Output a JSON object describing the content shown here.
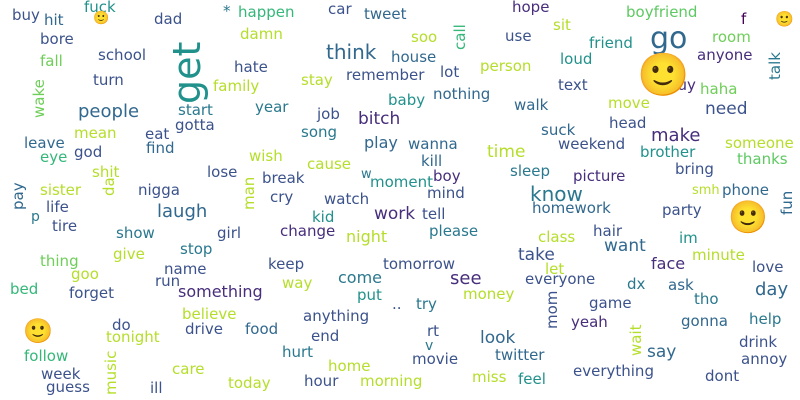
{
  "words": [
    {
      "text": "buy",
      "color": "#3b528b"
    },
    {
      "text": "fuck",
      "color": "#21918c"
    },
    {
      "text": "dad",
      "color": "#3b528b"
    },
    {
      "text": "*",
      "color": "#2a788e"
    },
    {
      "text": "happen",
      "color": "#35b779"
    },
    {
      "text": "car",
      "color": "#3b528b"
    },
    {
      "text": "tweet",
      "color": "#31688e"
    },
    {
      "text": "hope",
      "color": "#472d7b"
    },
    {
      "text": "boyfriend",
      "color": "#5ec962"
    },
    {
      "text": "f",
      "color": "#440154"
    },
    {
      "text": "hit",
      "color": "#31688e"
    },
    {
      "text": "🙂",
      "color": "#21918c"
    },
    {
      "text": "sit",
      "color": "#b5de2b"
    },
    {
      "text": "🙂",
      "color": "#2a788e"
    },
    {
      "text": "bore",
      "color": "#3b528b"
    },
    {
      "text": "damn",
      "color": "#b5de2b"
    },
    {
      "text": "soo",
      "color": "#b5de2b"
    },
    {
      "text": "call",
      "color": "#35b779"
    },
    {
      "text": "use",
      "color": "#3b528b"
    },
    {
      "text": "friend",
      "color": "#21918c"
    },
    {
      "text": "go",
      "color": "#31688e"
    },
    {
      "text": "room",
      "color": "#6ece58"
    },
    {
      "text": "school",
      "color": "#3b528b"
    },
    {
      "text": "think",
      "color": "#31688e"
    },
    {
      "text": "get",
      "color": "#21918c"
    },
    {
      "text": "house",
      "color": "#31688e"
    },
    {
      "text": "anyone",
      "color": "#472d7b"
    },
    {
      "text": "fall",
      "color": "#6ece58"
    },
    {
      "text": "hate",
      "color": "#3b528b"
    },
    {
      "text": "lot",
      "color": "#3b528b"
    },
    {
      "text": "person",
      "color": "#b5de2b"
    },
    {
      "text": "loud",
      "color": "#21918c"
    },
    {
      "text": "turn",
      "color": "#3b528b"
    },
    {
      "text": "stay",
      "color": "#b5de2b"
    },
    {
      "text": "remember",
      "color": "#3b528b"
    },
    {
      "text": "text",
      "color": "#3b528b"
    },
    {
      "text": "guy",
      "color": "#472d7b"
    },
    {
      "text": "haha",
      "color": "#6ece58"
    },
    {
      "text": "family",
      "color": "#b5de2b"
    },
    {
      "text": "baby",
      "color": "#21918c"
    },
    {
      "text": "nothing",
      "color": "#31688e"
    },
    {
      "text": "walk",
      "color": "#31688e"
    },
    {
      "text": "move",
      "color": "#b5de2b"
    },
    {
      "text": "need",
      "color": "#3b528b"
    },
    {
      "text": "people",
      "color": "#31688e"
    },
    {
      "text": "start",
      "color": "#2a788e"
    },
    {
      "text": "year",
      "color": "#2a788e"
    },
    {
      "text": "job",
      "color": "#3b528b"
    },
    {
      "text": "bitch",
      "color": "#472d7b"
    },
    {
      "text": "gotta",
      "color": "#3b528b"
    },
    {
      "text": "suck",
      "color": "#31688e"
    },
    {
      "text": "head",
      "color": "#3b528b"
    },
    {
      "text": "mean",
      "color": "#b5de2b"
    },
    {
      "text": "eat",
      "color": "#3b528b"
    },
    {
      "text": "song",
      "color": "#2a788e"
    },
    {
      "text": "make",
      "color": "#472d7b"
    },
    {
      "text": "someone",
      "color": "#b5de2b"
    },
    {
      "text": "leave",
      "color": "#31688e"
    },
    {
      "text": "play",
      "color": "#31688e"
    },
    {
      "text": "wanna",
      "color": "#31688e"
    },
    {
      "text": "weekend",
      "color": "#3b528b"
    },
    {
      "text": "brother",
      "color": "#21918c"
    },
    {
      "text": "thanks",
      "color": "#5ec962"
    },
    {
      "text": "god",
      "color": "#3b528b"
    },
    {
      "text": "find",
      "color": "#31688e"
    },
    {
      "text": "eye",
      "color": "#35b779"
    },
    {
      "text": "wish",
      "color": "#b5de2b"
    },
    {
      "text": "time",
      "color": "#b5de2b"
    },
    {
      "text": "kill",
      "color": "#31688e"
    },
    {
      "text": "cause",
      "color": "#b5de2b"
    },
    {
      "text": "shit",
      "color": "#b5de2b"
    },
    {
      "text": "lose",
      "color": "#3b528b"
    },
    {
      "text": "break",
      "color": "#3b528b"
    },
    {
      "text": "moment",
      "color": "#21918c"
    },
    {
      "text": "sleep",
      "color": "#2a788e"
    },
    {
      "text": "bring",
      "color": "#3b528b"
    },
    {
      "text": "know",
      "color": "#2a788e"
    },
    {
      "text": "sister",
      "color": "#b5de2b"
    },
    {
      "text": "nigga",
      "color": "#3b528b"
    },
    {
      "text": "cry",
      "color": "#3b528b"
    },
    {
      "text": "mind",
      "color": "#3b528b"
    },
    {
      "text": "boy",
      "color": "#472d7b"
    },
    {
      "text": "picture",
      "color": "#472d7b"
    },
    {
      "text": "phone",
      "color": "#31688e"
    },
    {
      "text": "smh",
      "color": "#b5de2b"
    },
    {
      "text": "laugh",
      "color": "#31688e"
    },
    {
      "text": "watch",
      "color": "#3b528b"
    },
    {
      "text": "life",
      "color": "#3b528b"
    },
    {
      "text": "work",
      "color": "#472d7b"
    },
    {
      "text": "tell",
      "color": "#3b528b"
    },
    {
      "text": "homework",
      "color": "#31688e"
    },
    {
      "text": "party",
      "color": "#3b528b"
    },
    {
      "text": "kid",
      "color": "#21918c"
    },
    {
      "text": "tire",
      "color": "#3b528b"
    },
    {
      "text": "show",
      "color": "#2a788e"
    },
    {
      "text": "change",
      "color": "#472d7b"
    },
    {
      "text": "night",
      "color": "#b5de2b"
    },
    {
      "text": "please",
      "color": "#2a788e"
    },
    {
      "text": "class",
      "color": "#b5de2b"
    },
    {
      "text": "hair",
      "color": "#3b528b"
    },
    {
      "text": "im",
      "color": "#21918c"
    },
    {
      "text": "girl",
      "color": "#3b528b"
    },
    {
      "text": "want",
      "color": "#31688e"
    },
    {
      "text": "give",
      "color": "#b5de2b"
    },
    {
      "text": "stop",
      "color": "#2a788e"
    },
    {
      "text": "keep",
      "color": "#3b528b"
    },
    {
      "text": "take",
      "color": "#3b528b"
    },
    {
      "text": "minute",
      "color": "#b5de2b"
    },
    {
      "text": "thing",
      "color": "#6ece58"
    },
    {
      "text": "see",
      "color": "#472d7b"
    },
    {
      "text": "tomorrow",
      "color": "#3b528b"
    },
    {
      "text": "face",
      "color": "#472d7b"
    },
    {
      "text": "love",
      "color": "#3b528b"
    },
    {
      "text": "goo",
      "color": "#b5de2b"
    },
    {
      "text": "run",
      "color": "#3b528b"
    },
    {
      "text": "name",
      "color": "#3b528b"
    },
    {
      "text": "way",
      "color": "#b5de2b"
    },
    {
      "text": "come",
      "color": "#2a788e"
    },
    {
      "text": "let",
      "color": "#b5de2b"
    },
    {
      "text": "everyone",
      "color": "#3b528b"
    },
    {
      "text": "bed",
      "color": "#35b779"
    },
    {
      "text": "forget",
      "color": "#3b528b"
    },
    {
      "text": "something",
      "color": "#472d7b"
    },
    {
      "text": "put",
      "color": "#21918c"
    },
    {
      "text": "money",
      "color": "#b5de2b"
    },
    {
      "text": "dx",
      "color": "#2a788e"
    },
    {
      "text": "ask",
      "color": "#31688e"
    },
    {
      "text": "day",
      "color": "#31688e"
    },
    {
      "text": "tho",
      "color": "#2a788e"
    },
    {
      "text": "believe",
      "color": "#b5de2b"
    },
    {
      "text": "anything",
      "color": "#3b528b"
    },
    {
      "text": "try",
      "color": "#2a788e"
    },
    {
      "text": "game",
      "color": "#3b528b"
    },
    {
      "text": "help",
      "color": "#2a788e"
    },
    {
      "text": "do",
      "color": "#3b528b"
    },
    {
      "text": "drive",
      "color": "#3b528b"
    },
    {
      "text": "food",
      "color": "#31688e"
    },
    {
      "text": "rt",
      "color": "#3b528b"
    },
    {
      "text": "yeah",
      "color": "#472d7b"
    },
    {
      "text": "gonna",
      "color": "#31688e"
    },
    {
      "text": "tonight",
      "color": "#b5de2b"
    },
    {
      "text": "end",
      "color": "#3b528b"
    },
    {
      "text": "look",
      "color": "#31688e"
    },
    {
      "text": "drink",
      "color": "#3b528b"
    },
    {
      "text": "follow",
      "color": "#35b779"
    },
    {
      "text": "hurt",
      "color": "#2a788e"
    },
    {
      "text": "say",
      "color": "#31688e"
    },
    {
      "text": "annoy",
      "color": "#3b528b"
    },
    {
      "text": "week",
      "color": "#3b528b"
    },
    {
      "text": "care",
      "color": "#b5de2b"
    },
    {
      "text": "home",
      "color": "#b5de2b"
    },
    {
      "text": "movie",
      "color": "#3b528b"
    },
    {
      "text": "twitter",
      "color": "#31688e"
    },
    {
      "text": "everything",
      "color": "#3b528b"
    },
    {
      "text": "dont",
      "color": "#3b528b"
    },
    {
      "text": "guess",
      "color": "#3b528b"
    },
    {
      "text": "ill",
      "color": "#3b528b"
    },
    {
      "text": "today",
      "color": "#b5de2b"
    },
    {
      "text": "hour",
      "color": "#3b528b"
    },
    {
      "text": "morning",
      "color": "#b5de2b"
    },
    {
      "text": "miss",
      "color": "#b5de2b"
    },
    {
      "text": "feel",
      "color": "#21918c"
    },
    {
      "text": "..",
      "color": "#3b528b"
    },
    {
      "text": "w",
      "color": "#2a788e"
    },
    {
      "text": "v",
      "color": "#2a788e"
    },
    {
      "text": "p",
      "color": "#2a788e"
    },
    {
      "text": "🙂",
      "color": "#440154"
    },
    {
      "text": "🙂",
      "color": "#6ece58"
    },
    {
      "text": "🙂",
      "color": "#b5de2b"
    },
    {
      "text": "talk",
      "color": "#2a788e"
    },
    {
      "text": "wake",
      "color": "#6ece58"
    },
    {
      "text": "da",
      "color": "#b5de2b"
    },
    {
      "text": "pay",
      "color": "#31688e"
    },
    {
      "text": "man",
      "color": "#b5de2b"
    },
    {
      "text": "music",
      "color": "#b5de2b"
    },
    {
      "text": "mom",
      "color": "#3b528b"
    },
    {
      "text": "wait",
      "color": "#b5de2b"
    },
    {
      "text": "fun",
      "color": "#31688e"
    }
  ]
}
